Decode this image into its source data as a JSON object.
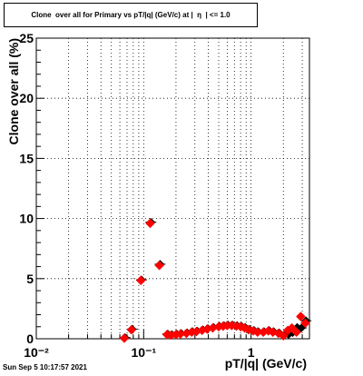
{
  "chart_data": {
    "type": "scatter",
    "title": "Clone  over all for Primary vs pT/|q| (GeV/c) at |  η  | <= 1.0",
    "xlabel": "pT/|q| (GeV/c)",
    "ylabel": "Clone  over all (%)",
    "x_scale": "log",
    "xlim": [
      0.01,
      3.5
    ],
    "ylim": [
      0,
      25
    ],
    "x_ticks": [
      {
        "value": 0.01,
        "label": "10⁻²"
      },
      {
        "value": 0.1,
        "label": "10⁻¹"
      },
      {
        "value": 1,
        "label": "1"
      }
    ],
    "y_ticks": [
      0,
      5,
      10,
      15,
      20,
      25
    ],
    "grid": true,
    "series": [
      {
        "marker": "black-diamond",
        "color": "#000000",
        "points": [
          [
            0.066,
            0.1
          ],
          [
            0.077,
            0.8
          ],
          [
            0.094,
            4.9
          ],
          [
            0.115,
            9.7
          ],
          [
            0.14,
            6.2
          ],
          [
            0.165,
            0.4
          ],
          [
            0.18,
            0.35
          ],
          [
            0.2,
            0.4
          ],
          [
            0.22,
            0.45
          ],
          [
            0.25,
            0.5
          ],
          [
            0.28,
            0.6
          ],
          [
            0.31,
            0.65
          ],
          [
            0.35,
            0.75
          ],
          [
            0.39,
            0.85
          ],
          [
            0.44,
            0.95
          ],
          [
            0.5,
            1.05
          ],
          [
            0.55,
            1.1
          ],
          [
            0.6,
            1.15
          ],
          [
            0.66,
            1.15
          ],
          [
            0.73,
            1.1
          ],
          [
            0.8,
            1.05
          ],
          [
            0.87,
            0.95
          ],
          [
            0.95,
            0.8
          ],
          [
            1.05,
            0.7
          ],
          [
            1.15,
            0.6
          ],
          [
            1.3,
            0.6
          ],
          [
            1.45,
            0.7
          ],
          [
            1.6,
            0.6
          ],
          [
            1.8,
            0.5
          ],
          [
            2.0,
            0.3
          ],
          [
            2.2,
            0.35
          ],
          [
            2.4,
            0.5
          ],
          [
            2.65,
            0.95
          ],
          [
            2.9,
            0.9
          ],
          [
            3.2,
            1.5
          ]
        ]
      },
      {
        "marker": "red-diamond",
        "color": "#ff0000",
        "points": [
          [
            0.066,
            0.05
          ],
          [
            0.077,
            0.75
          ],
          [
            0.094,
            4.85
          ],
          [
            0.115,
            9.6
          ],
          [
            0.14,
            6.1
          ],
          [
            0.165,
            0.35
          ],
          [
            0.18,
            0.3
          ],
          [
            0.2,
            0.35
          ],
          [
            0.22,
            0.4
          ],
          [
            0.25,
            0.45
          ],
          [
            0.28,
            0.55
          ],
          [
            0.31,
            0.6
          ],
          [
            0.35,
            0.7
          ],
          [
            0.39,
            0.8
          ],
          [
            0.44,
            0.9
          ],
          [
            0.5,
            1.0
          ],
          [
            0.55,
            1.05
          ],
          [
            0.6,
            1.1
          ],
          [
            0.66,
            1.1
          ],
          [
            0.73,
            1.05
          ],
          [
            0.8,
            1.0
          ],
          [
            0.87,
            0.9
          ],
          [
            0.95,
            0.75
          ],
          [
            1.05,
            0.65
          ],
          [
            1.15,
            0.55
          ],
          [
            1.3,
            0.55
          ],
          [
            1.45,
            0.65
          ],
          [
            1.6,
            0.55
          ],
          [
            1.8,
            0.45
          ],
          [
            2.0,
            0.25
          ],
          [
            2.2,
            0.7
          ],
          [
            2.4,
            0.9
          ],
          [
            2.65,
            0.55
          ],
          [
            2.9,
            1.85
          ],
          [
            3.2,
            1.3
          ]
        ]
      }
    ]
  },
  "footer": {
    "timestamp": "Sun Sep  5 10:17:57 2021"
  }
}
